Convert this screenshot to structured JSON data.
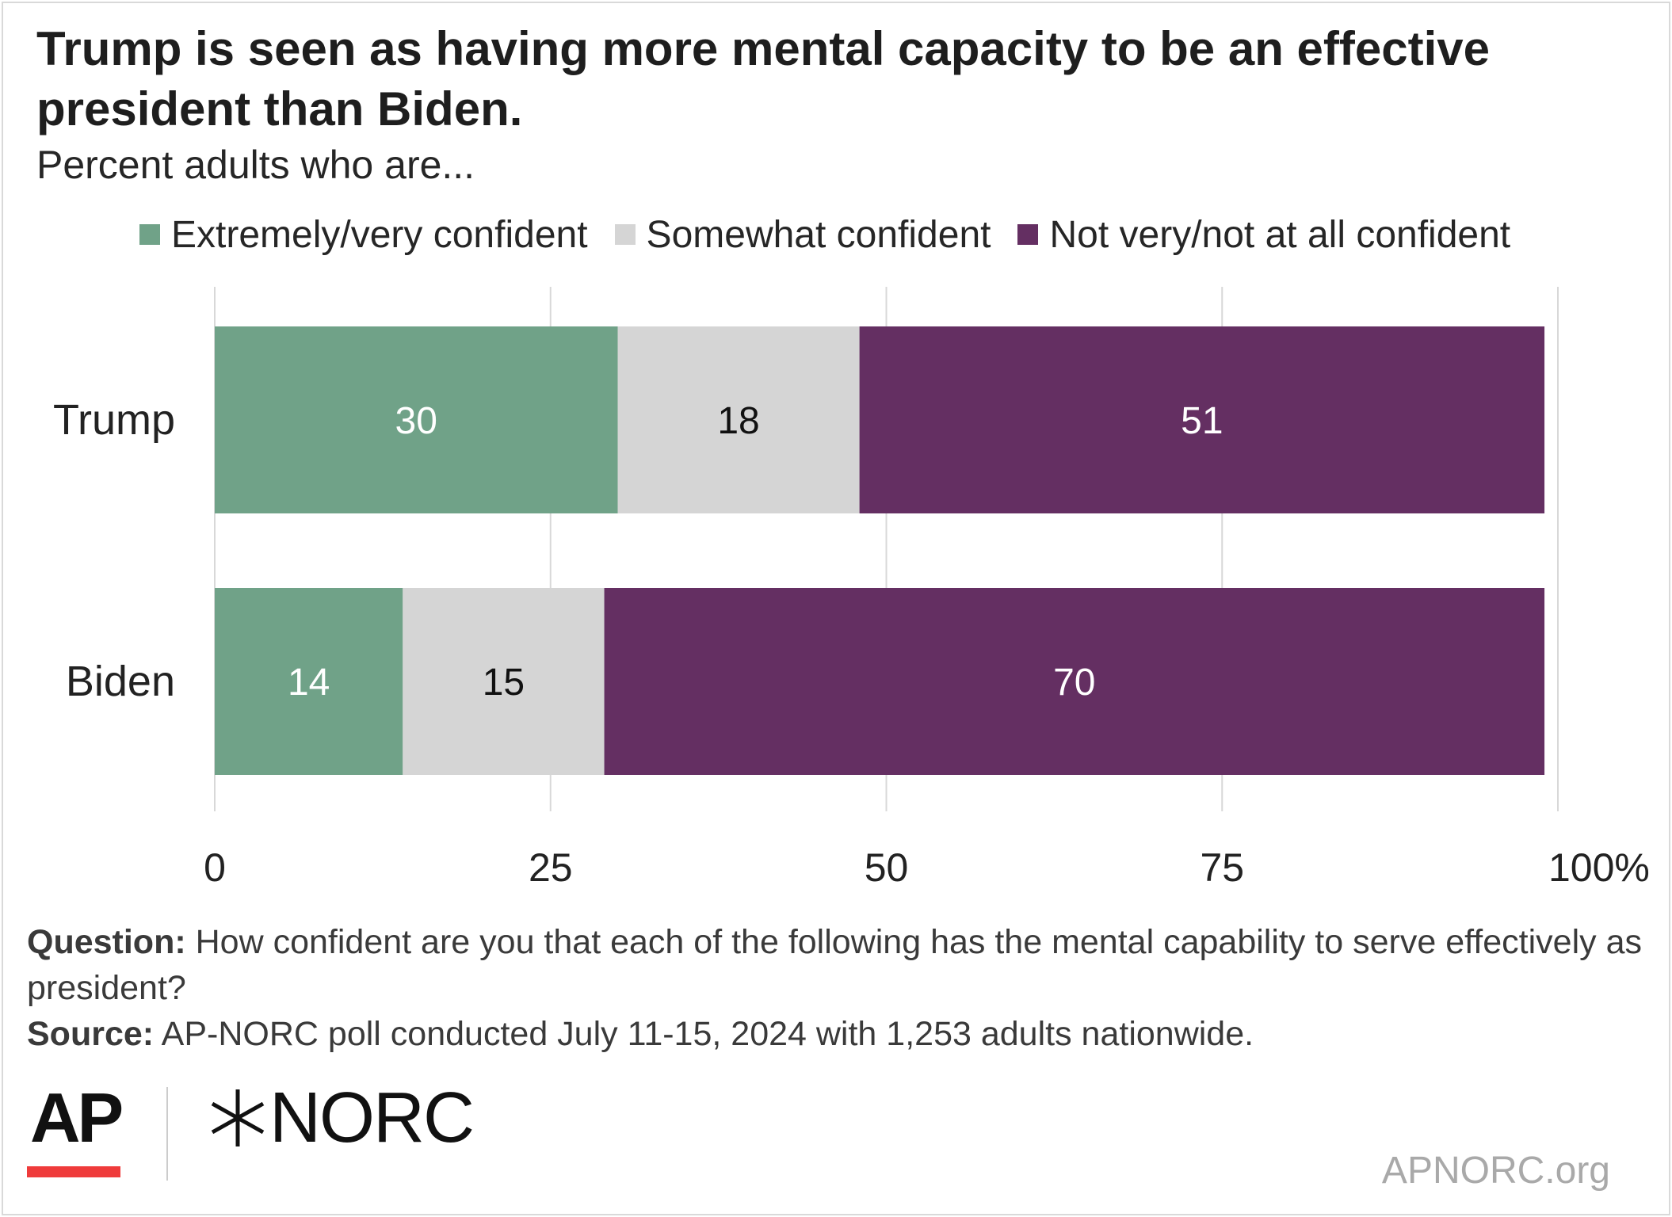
{
  "header": {
    "title": "Trump is seen as having more mental capacity to be an effective president than Biden.",
    "subtitle": "Percent adults who are..."
  },
  "chart_data": {
    "type": "bar",
    "orientation": "horizontal",
    "stacked": true,
    "title": "Trump is seen as having more mental capacity to be an effective president than Biden.",
    "subtitle": "Percent adults who are...",
    "categories": [
      "Trump",
      "Biden"
    ],
    "series": [
      {
        "name": "Extremely/very confident",
        "color": "#70a288",
        "label_color": "#ffffff",
        "values": [
          30,
          14
        ]
      },
      {
        "name": "Somewhat confident",
        "color": "#d5d5d5",
        "label_color": "#111111",
        "values": [
          18,
          15
        ]
      },
      {
        "name": "Not very/not at all confident",
        "color": "#642f62",
        "label_color": "#ffffff",
        "values": [
          51,
          70
        ]
      }
    ],
    "xlim": [
      0,
      100
    ],
    "xticks": [
      0,
      25,
      50,
      75,
      100
    ],
    "xtick_labels": [
      "0",
      "25",
      "50",
      "75",
      "100%"
    ],
    "grid": true,
    "legend_position": "top"
  },
  "notes": {
    "question_label": "Question:",
    "question_text": " How confident are you that each of the following has the mental capability to serve effectively as president?",
    "source_label": "Source:",
    "source_text": " AP-NORC poll conducted July 11-15, 2024 with 1,253 adults nationwide."
  },
  "branding": {
    "ap_logo": "AP",
    "norc_logo": "NORC",
    "norc_icon": "norc-star-icon",
    "website": "APNORC.org",
    "accent_color": "#ef3b3b"
  }
}
